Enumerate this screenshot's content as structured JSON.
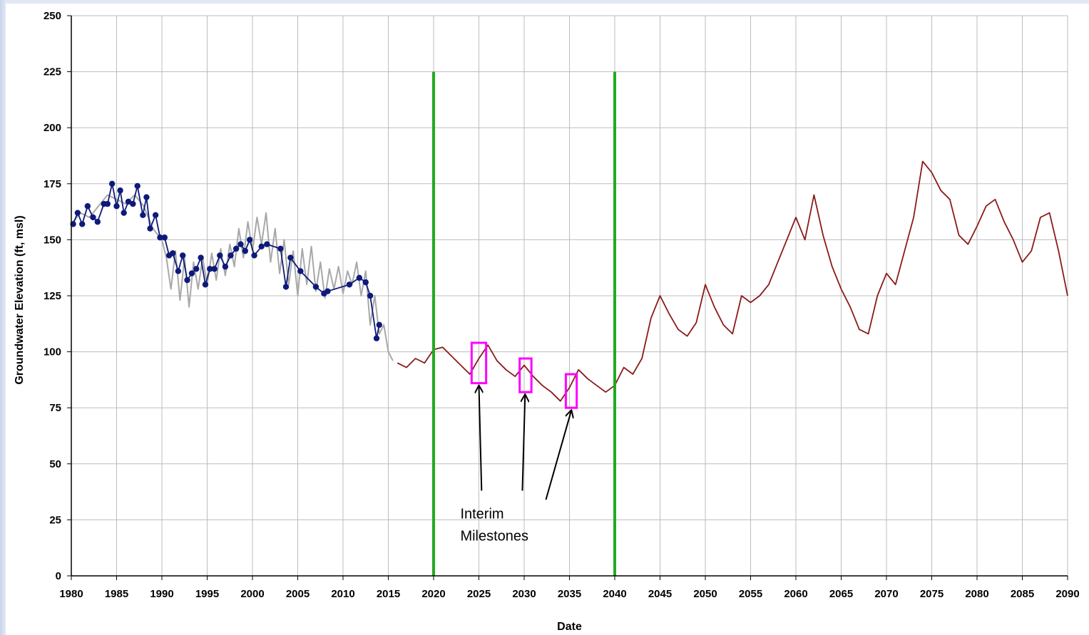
{
  "chart_data": {
    "type": "line",
    "title": "",
    "xlabel": "Date",
    "ylabel": "Groundwater Elevation (ft, msl)",
    "xlim": [
      1980,
      2090
    ],
    "ylim": [
      0,
      250
    ],
    "x_ticks": [
      1980,
      1985,
      1990,
      1995,
      2000,
      2005,
      2010,
      2015,
      2020,
      2025,
      2030,
      2035,
      2040,
      2045,
      2050,
      2055,
      2060,
      2065,
      2070,
      2075,
      2080,
      2085,
      2090
    ],
    "y_ticks": [
      0,
      25,
      50,
      75,
      100,
      125,
      150,
      175,
      200,
      225,
      250
    ],
    "grid": true,
    "colors": {
      "observed": "#0d1a7a",
      "historical_simulated": "#a8a8a8",
      "projected": "#8b1a1a",
      "period_markers": "#22aa22",
      "milestone_boxes": "#ff00ff",
      "grid": "#bdbdbd"
    },
    "series": [
      {
        "style": "markers+line",
        "x": [
          1980.2,
          1980.7,
          1981.2,
          1981.8,
          1982.4,
          1982.9,
          1983.6,
          1984.0,
          1984.5,
          1985.0,
          1985.4,
          1985.8,
          1986.3,
          1986.8,
          1987.3,
          1987.9,
          1988.3,
          1988.7,
          1989.3,
          1989.8,
          1990.3,
          1990.8,
          1991.2,
          1991.8,
          1992.3,
          1992.8,
          1993.3,
          1993.8,
          1994.3,
          1994.8,
          1995.3,
          1995.8,
          1996.4,
          1997.0,
          1997.6,
          1998.2,
          1998.7,
          1999.2,
          1999.7,
          2000.2,
          2001.0,
          2001.6,
          2003.1,
          2003.7,
          2004.2,
          2005.3,
          2007.0,
          2007.9,
          2008.3,
          2010.7,
          2011.8,
          2012.5,
          2013.0,
          2013.7,
          2014.0
        ],
        "y": [
          157,
          162,
          157,
          165,
          160,
          158,
          166,
          166,
          175,
          165,
          172,
          162,
          167,
          166,
          174,
          161,
          169,
          155,
          161,
          151,
          151,
          143,
          144,
          136,
          143,
          132,
          135,
          137,
          142,
          130,
          137,
          137,
          143,
          138,
          143,
          146,
          148,
          145,
          150,
          143,
          147,
          148,
          146,
          129,
          142,
          136,
          129,
          126,
          127,
          130,
          133,
          131,
          125,
          106,
          112
        ]
      },
      {
        "style": "line",
        "x": [
          1980,
          1981,
          1982,
          1983,
          1984,
          1985,
          1986,
          1987,
          1988,
          1989,
          1990,
          1990.5,
          1991,
          1991.5,
          1992,
          1992.5,
          1993,
          1993.5,
          1994,
          1994.5,
          1995,
          1995.5,
          1996,
          1996.5,
          1997,
          1997.5,
          1998,
          1998.5,
          1999,
          1999.5,
          2000,
          2000.5,
          2001,
          2001.5,
          2002,
          2002.5,
          2003,
          2003.5,
          2004,
          2004.5,
          2005,
          2005.5,
          2006,
          2006.5,
          2007,
          2007.5,
          2008,
          2008.5,
          2009,
          2009.5,
          2010,
          2010.5,
          2011,
          2011.5,
          2012,
          2012.5,
          2013,
          2013.5,
          2014,
          2014.5,
          2015,
          2015.5
        ],
        "y": [
          157,
          162,
          160,
          165,
          170,
          168,
          166,
          170,
          165,
          155,
          150,
          142,
          128,
          145,
          123,
          142,
          120,
          140,
          128,
          142,
          130,
          144,
          132,
          146,
          134,
          148,
          138,
          155,
          142,
          158,
          145,
          160,
          148,
          162,
          140,
          155,
          135,
          150,
          130,
          145,
          125,
          146,
          130,
          147,
          127,
          140,
          124,
          137,
          128,
          138,
          126,
          136,
          130,
          140,
          125,
          136,
          112,
          125,
          108,
          112,
          100,
          96
        ]
      },
      {
        "style": "line",
        "x": [
          2016,
          2017,
          2018,
          2019,
          2020,
          2021,
          2022,
          2023,
          2024,
          2025,
          2026,
          2027,
          2028,
          2029,
          2030,
          2031,
          2032,
          2033,
          2034,
          2035,
          2036,
          2037,
          2038,
          2039,
          2040,
          2041,
          2042,
          2043,
          2044,
          2045,
          2046,
          2047,
          2048,
          2049,
          2050,
          2051,
          2052,
          2053,
          2054,
          2055,
          2056,
          2057,
          2058,
          2059,
          2060,
          2061,
          2062,
          2063,
          2064,
          2065,
          2066,
          2067,
          2068,
          2069,
          2070,
          2071,
          2072,
          2073,
          2074,
          2075,
          2076,
          2077,
          2078,
          2079,
          2080,
          2081,
          2082,
          2083,
          2084,
          2085,
          2086,
          2087,
          2088,
          2089,
          2090
        ],
        "y": [
          95,
          93,
          97,
          95,
          101,
          102,
          98,
          94,
          90,
          97,
          103,
          96,
          92,
          89,
          94,
          89,
          85,
          82,
          78,
          84,
          92,
          88,
          85,
          82,
          85,
          93,
          90,
          97,
          115,
          125,
          117,
          110,
          107,
          113,
          130,
          120,
          112,
          108,
          125,
          122,
          125,
          130,
          140,
          150,
          160,
          150,
          170,
          152,
          138,
          128,
          120,
          110,
          108,
          125,
          135,
          130,
          145,
          160,
          185,
          180,
          172,
          168,
          152,
          148,
          156,
          165,
          168,
          158,
          150,
          140,
          145,
          160,
          162,
          145,
          125
        ]
      }
    ],
    "vertical_lines": [
      2020,
      2040
    ],
    "milestone_boxes": [
      {
        "x": [
          2024.2,
          2025.8
        ],
        "y": [
          86,
          104
        ]
      },
      {
        "x": [
          2029.5,
          2030.8
        ],
        "y": [
          82,
          97
        ]
      },
      {
        "x": [
          2034.6,
          2035.8
        ],
        "y": [
          75,
          90
        ]
      }
    ],
    "annotation": {
      "lines": [
        "Interim",
        "Milestones"
      ],
      "at": [
        2027.2,
        25
      ],
      "arrow_targets": [
        [
          2025.0,
          86
        ],
        [
          2030.1,
          82
        ],
        [
          2035.2,
          75
        ]
      ],
      "arrow_tails": [
        [
          2025.3,
          38
        ],
        [
          2029.8,
          38
        ],
        [
          2032.4,
          34
        ]
      ]
    }
  }
}
